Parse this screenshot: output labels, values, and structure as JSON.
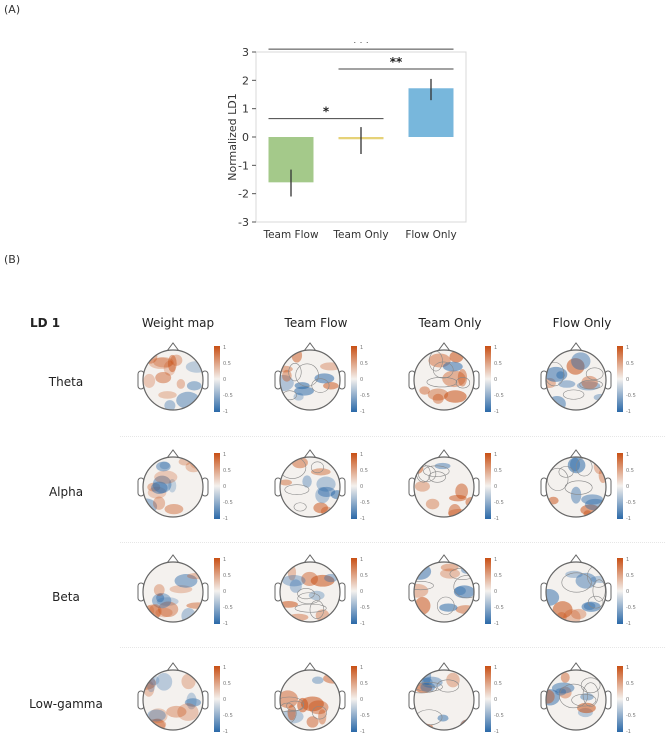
{
  "panels": {
    "a_label": "(A)",
    "b_label": "(B)"
  },
  "chart_data": {
    "type": "bar",
    "categories": [
      "Team Flow",
      "Team Only",
      "Flow Only"
    ],
    "values": [
      -1.6,
      -0.08,
      1.72
    ],
    "errors": [
      [
        -2.1,
        -1.15
      ],
      [
        -0.6,
        0.35
      ],
      [
        1.3,
        2.05
      ]
    ],
    "colors": [
      "#a4c98a",
      "#e6d278",
      "#78b7dc"
    ],
    "ylabel": "Normalized LD1",
    "xlabel": "",
    "title": "",
    "ylim": [
      -3,
      3
    ],
    "yticks": [
      -3,
      -2,
      -1,
      0,
      1,
      2,
      3
    ],
    "significance": [
      {
        "from": 0,
        "to": 1,
        "label": "*",
        "y": 0.65
      },
      {
        "from": 1,
        "to": 2,
        "label": "**",
        "y": 2.4
      },
      {
        "from": 0,
        "to": 2,
        "label": "***",
        "y": 3.1
      }
    ]
  },
  "grid": {
    "title": "LD 1",
    "columns": [
      "Weight map",
      "Team Flow",
      "Team Only",
      "Flow Only"
    ],
    "rows": [
      "Theta",
      "Alpha",
      "Beta",
      "Low-gamma"
    ],
    "colorbar_ticks": [
      "1",
      "0.5",
      "0",
      "-0.5",
      "-1"
    ],
    "colormap": {
      "high": "#c84f14",
      "mid": "#f4f1ee",
      "low": "#2b69a8"
    }
  }
}
